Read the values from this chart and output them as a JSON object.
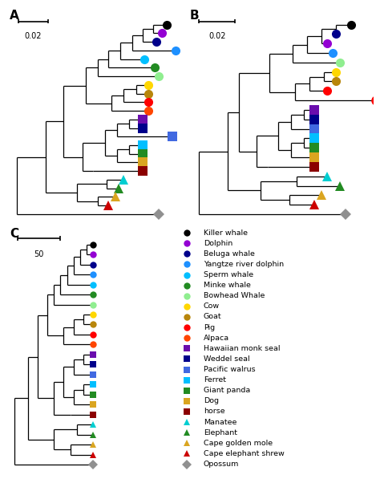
{
  "species_order_A": [
    "Killer whale",
    "Dolphin",
    "Beluga whale",
    "Yangtze river dolphin",
    "Sperm whale",
    "Minke whale",
    "Bowhead Whale",
    "Cow",
    "Goat",
    "Pig",
    "Alpaca",
    "Hawaiian monk seal",
    "Weddel seal",
    "Pacific walrus",
    "Ferret",
    "Giant panda",
    "Dog",
    "horse",
    "Manatee",
    "Elephant",
    "Cape golden mole",
    "Cape elephant shrew",
    "Opossum"
  ],
  "species_order_B": [
    "Killer whale",
    "Beluga whale",
    "Dolphin",
    "Yangtze river dolphin",
    "Bowhead Whale",
    "Cow",
    "Goat",
    "Pig",
    "Alpaca_B",
    "Hawaiian monk seal",
    "Weddel seal",
    "Pacific walrus",
    "Ferret",
    "Giant panda",
    "Dog",
    "horse",
    "Manatee",
    "Elephant",
    "Cape golden mole",
    "Cape elephant shrew",
    "Opossum"
  ],
  "colors": {
    "Killer whale": "#000000",
    "Dolphin": "#9400D3",
    "Beluga whale": "#00008B",
    "Yangtze river dolphin": "#1E90FF",
    "Sperm whale": "#00BFFF",
    "Minke whale": "#228B22",
    "Bowhead Whale": "#90EE90",
    "Cow": "#FFD700",
    "Goat": "#B8860B",
    "Pig": "#FF0000",
    "Alpaca": "#FF4500",
    "Alpaca_B": "#FF0000",
    "Hawaiian monk seal": "#6A0DAD",
    "Weddel seal": "#00008B",
    "Pacific walrus": "#4169E1",
    "Ferret": "#00BFFF",
    "Giant panda": "#228B22",
    "Dog": "#DAA520",
    "horse": "#8B0000",
    "Manatee": "#00CED1",
    "Elephant": "#228B22",
    "Cape golden mole": "#DAA520",
    "Cape elephant shrew": "#CC0000",
    "Opossum": "#909090"
  },
  "markers": {
    "Killer whale": "o",
    "Dolphin": "o",
    "Beluga whale": "o",
    "Yangtze river dolphin": "o",
    "Sperm whale": "o",
    "Minke whale": "o",
    "Bowhead Whale": "o",
    "Cow": "o",
    "Goat": "o",
    "Pig": "o",
    "Alpaca": "o",
    "Alpaca_B": "o",
    "Hawaiian monk seal": "s",
    "Weddel seal": "s",
    "Pacific walrus": "s",
    "Ferret": "s",
    "Giant panda": "s",
    "Dog": "s",
    "horse": "s",
    "Manatee": "^",
    "Elephant": "^",
    "Cape golden mole": "^",
    "Cape elephant shrew": "^",
    "Opossum": "D"
  },
  "legend_species": [
    "Killer whale",
    "Dolphin",
    "Beluga whale",
    "Yangtze river dolphin",
    "Sperm whale",
    "Minke whale",
    "Bowhead Whale",
    "Cow",
    "Goat",
    "Pig",
    "Alpaca",
    "Hawaiian monk seal",
    "Weddel seal",
    "Pacific walrus",
    "Ferret",
    "Giant panda",
    "Dog",
    "horse",
    "Manatee",
    "Elephant",
    "Cape golden mole",
    "Cape elephant shrew",
    "Opossum"
  ]
}
